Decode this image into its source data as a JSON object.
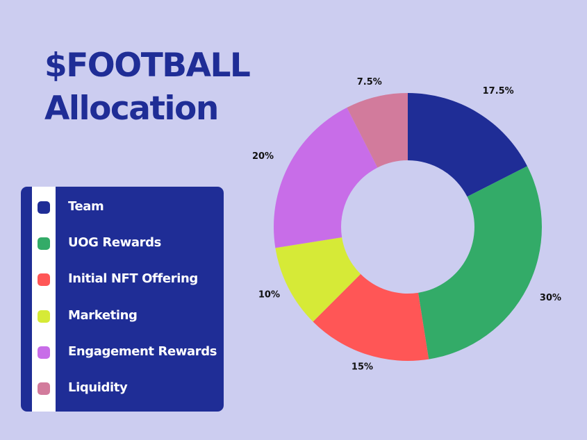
{
  "title": {
    "line1": "$FOOTBALL",
    "line2": "Allocation"
  },
  "chart_data": {
    "type": "pie",
    "title": "$FOOTBALL Allocation",
    "categories": [
      "Team",
      "UOG Rewards",
      "Initial NFT Offering",
      "Marketing",
      "Engagement Rewards",
      "Liquidity"
    ],
    "values": [
      17.5,
      30,
      15,
      10,
      20,
      7.5
    ],
    "labels": [
      "17.5%",
      "30%",
      "15%",
      "10%",
      "20%",
      "7.5%"
    ],
    "colors": [
      "#1f2d96",
      "#33ab68",
      "#ff5656",
      "#d6ea37",
      "#c86de8",
      "#d27b9c"
    ],
    "donut": true,
    "legend_placement": "left"
  }
}
